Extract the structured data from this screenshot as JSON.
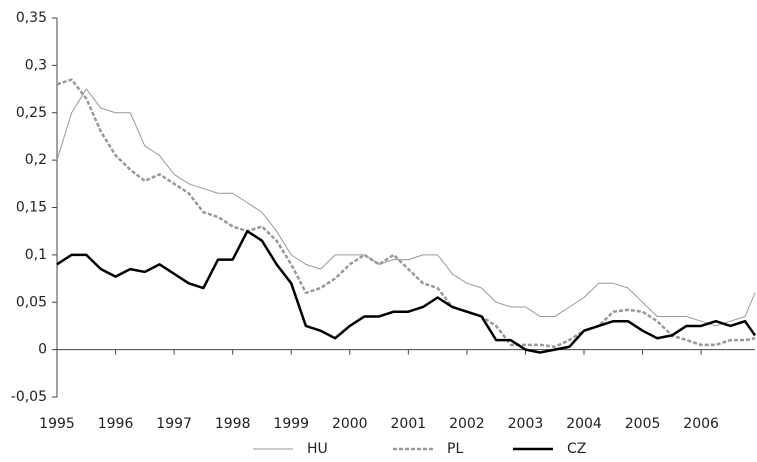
{
  "chart_data": {
    "type": "line",
    "x": [
      1995,
      1995.25,
      1995.5,
      1995.75,
      1996,
      1996.25,
      1996.5,
      1996.75,
      1997,
      1997.25,
      1997.5,
      1997.75,
      1998,
      1998.25,
      1998.5,
      1998.75,
      1999,
      1999.25,
      1999.5,
      1999.75,
      2000,
      2000.25,
      2000.5,
      2000.75,
      2001,
      2001.25,
      2001.5,
      2001.75,
      2002,
      2002.25,
      2002.5,
      2002.75,
      2003,
      2003.25,
      2003.5,
      2003.75,
      2004,
      2004.25,
      2004.5,
      2004.75,
      2005,
      2005.25,
      2005.5,
      2005.75,
      2006,
      2006.25,
      2006.5,
      2006.75,
      2006.92
    ],
    "series": [
      {
        "name": "HU",
        "color": "#999999",
        "style": "thin",
        "values": [
          0.2,
          0.25,
          0.275,
          0.255,
          0.25,
          0.25,
          0.215,
          0.205,
          0.185,
          0.175,
          0.17,
          0.165,
          0.165,
          0.155,
          0.145,
          0.125,
          0.1,
          0.09,
          0.085,
          0.1,
          0.1,
          0.1,
          0.09,
          0.095,
          0.095,
          0.1,
          0.1,
          0.08,
          0.07,
          0.065,
          0.05,
          0.045,
          0.045,
          0.035,
          0.035,
          0.045,
          0.055,
          0.07,
          0.07,
          0.065,
          0.05,
          0.035,
          0.035,
          0.035,
          0.03,
          0.025,
          0.03,
          0.035,
          0.06
        ]
      },
      {
        "name": "PL",
        "color": "#999999",
        "style": "dashed",
        "values": [
          0.28,
          0.285,
          0.265,
          0.23,
          0.205,
          0.19,
          0.178,
          0.185,
          0.175,
          0.165,
          0.145,
          0.14,
          0.13,
          0.125,
          0.13,
          0.115,
          0.09,
          0.06,
          0.065,
          0.075,
          0.09,
          0.1,
          0.09,
          0.1,
          0.085,
          0.07,
          0.065,
          0.045,
          0.04,
          0.035,
          0.025,
          0.005,
          0.005,
          0.005,
          0.003,
          0.01,
          0.02,
          0.025,
          0.04,
          0.042,
          0.04,
          0.03,
          0.015,
          0.01,
          0.005,
          0.005,
          0.01,
          0.01,
          0.012
        ]
      },
      {
        "name": "CZ",
        "color": "#000000",
        "style": "thick",
        "values": [
          0.09,
          0.1,
          0.1,
          0.085,
          0.077,
          0.085,
          0.082,
          0.09,
          0.08,
          0.07,
          0.065,
          0.095,
          0.095,
          0.125,
          0.115,
          0.09,
          0.07,
          0.025,
          0.02,
          0.012,
          0.025,
          0.035,
          0.035,
          0.04,
          0.04,
          0.045,
          0.055,
          0.045,
          0.04,
          0.035,
          0.01,
          0.01,
          0,
          -0.003,
          0,
          0.003,
          0.02,
          0.025,
          0.03,
          0.03,
          0.02,
          0.012,
          0.015,
          0.025,
          0.025,
          0.03,
          0.025,
          0.03,
          0.015
        ]
      }
    ],
    "xlim": [
      1995,
      2006.92
    ],
    "xticks": [
      1995,
      1996,
      1997,
      1998,
      1999,
      2000,
      2001,
      2002,
      2003,
      2004,
      2005,
      2006
    ],
    "ylim": [
      -0.05,
      0.35
    ],
    "yticks": [
      {
        "value": -0.05,
        "label": "-0,05"
      },
      0,
      {
        "value": 0.05,
        "label": "0,05"
      },
      {
        "value": 0.1,
        "label": "0,1"
      },
      {
        "value": 0.15,
        "label": "0,15"
      },
      {
        "value": 0.2,
        "label": "0,2"
      },
      {
        "value": 0.25,
        "label": "0,25"
      },
      {
        "value": 0.3,
        "label": "0,3"
      },
      {
        "value": 0.35,
        "label": "0,35"
      }
    ],
    "legend": "bottom"
  }
}
